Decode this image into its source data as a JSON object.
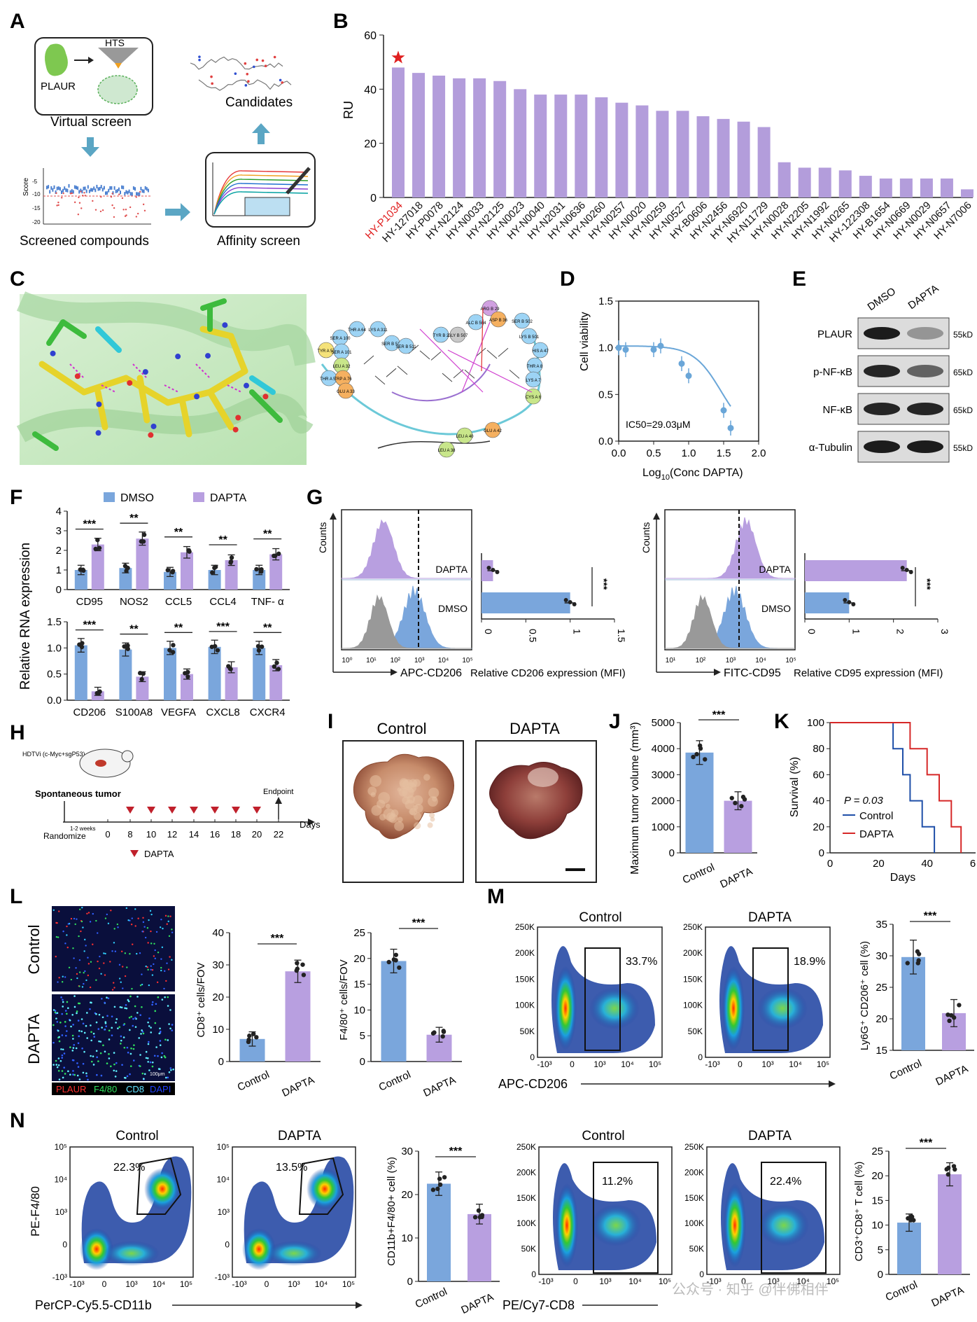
{
  "panels": {
    "A": {
      "letter": "A",
      "plaur": "PLAUR",
      "hts": "HTS",
      "virtual_screen": "Virtual screen",
      "candidates": "Candidates",
      "screened": "Screened compounds",
      "affinity": "Affinity screen",
      "score_label": "Score",
      "score_ticks": [
        "-5",
        "-10",
        "-15",
        "-20"
      ]
    },
    "B": {
      "letter": "B"
    },
    "C": {
      "letter": "C",
      "residue_labels": [
        "TYR A 57",
        "SER A 100",
        "THR A 64",
        "LYS A 311",
        "SER A 101",
        "LEU A 32",
        "THR A 59",
        "TRP A 76",
        "GLU A 33",
        "SER B 512",
        "SER B 511",
        "TYR B 2",
        "GLY B 507",
        "ALC B 504",
        "ARG B 29",
        "ASP B 36",
        "SER B 502",
        "LYS B 501",
        "HIS A 47",
        "THR A 8",
        "LYS A 7",
        "CYS A 6",
        "GLU A 42",
        "LEU A 40",
        "LEU A 38"
      ]
    },
    "D": {
      "letter": "D",
      "ylabel": "Cell viability",
      "xlabel_main": "Log",
      "xlabel_sub": "10",
      "xlabel_rest": "(Conc DAPTA)",
      "ic50": "IC50=29.03μM",
      "xticks": [
        "0.0",
        "0.5",
        "1.0",
        "1.5",
        "2.0"
      ],
      "yticks": [
        "0.0",
        "0.5",
        "1.0",
        "1.5"
      ]
    },
    "E": {
      "letter": "E",
      "cols": [
        "DMSO",
        "DAPTA"
      ],
      "rows": [
        {
          "name": "PLAUR",
          "kd": "55kD"
        },
        {
          "name": "p-NF-κB",
          "kd": "65kD"
        },
        {
          "name": "NF-κB",
          "kd": "65kD"
        },
        {
          "name": "α-Tubulin",
          "kd": "55kD"
        }
      ]
    },
    "F": {
      "letter": "F",
      "ylabel": "Relative RNA expression",
      "legend": [
        "DMSO",
        "DAPTA"
      ]
    },
    "G": {
      "letter": "G",
      "counts": "Counts",
      "left_x": "APC-CD206",
      "right_x": "FITC-CD95",
      "left_bar_x": "Relative CD206 expression (MFI)",
      "right_bar_x": "Relative CD95 expression (MFI)",
      "rows": [
        "DAPTA",
        "DMSO"
      ],
      "hist_ticks": [
        "10⁰",
        "10¹",
        "10²",
        "10³",
        "10⁴",
        "10⁵"
      ],
      "hist_ticks_right": [
        "10¹",
        "10²",
        "10³",
        "10⁴",
        "10⁵"
      ]
    },
    "H": {
      "letter": "H",
      "hdtv": "HDTVi (c-Myc+sgP53)",
      "spont": "Spontaneous tumor",
      "endpoint": "Endpoint",
      "randomize": "Randomize",
      "weeks": "1-2 weeks",
      "days": "Days",
      "ticks": [
        "0",
        "8",
        "10",
        "12",
        "14",
        "16",
        "18",
        "20",
        "22"
      ],
      "legend": "DAPTA"
    },
    "I": {
      "letter": "I",
      "labels": [
        "Control",
        "DAPTA"
      ]
    },
    "J": {
      "letter": "J",
      "ylabel": "Maximum tumor volume (mm³)",
      "yticks": [
        "0",
        "1000",
        "2000",
        "3000",
        "4000",
        "5000"
      ],
      "xlabels": [
        "Control",
        "DAPTA"
      ],
      "sig": "***"
    },
    "K": {
      "letter": "K",
      "ylabel": "Survival (%)",
      "xlabel": "Days",
      "p": "P = 0.03",
      "legend": [
        "Control",
        "DAPTA"
      ],
      "yticks": [
        "0",
        "20",
        "40",
        "60",
        "80",
        "100"
      ],
      "xticks": [
        "0",
        "20",
        "40",
        "6"
      ]
    },
    "L": {
      "letter": "L",
      "rows": [
        "Control",
        "DAPTA"
      ],
      "legend": [
        "PLAUR",
        "F4/80",
        "CD8",
        "DAPI"
      ],
      "scalebar": "100μm",
      "cd8_ylabel": "CD8⁺ cells/FOV",
      "f480_ylabel": "F4/80⁺ cells/FOV",
      "xlabels": [
        "Control",
        "DAPTA"
      ],
      "sig": "***"
    },
    "M": {
      "letter": "M",
      "titles": [
        "Control",
        "DAPTA"
      ],
      "pcts": [
        "33.7%",
        "18.9%"
      ],
      "xlabel": "APC-CD206",
      "bar_ylabel": "Ly6G⁺ CD206⁺ cell (%)",
      "yticks_k": [
        "0",
        "50K",
        "100K",
        "150K",
        "200K",
        "250K"
      ],
      "xticks": [
        "-10³",
        "0",
        "10³",
        "10⁴",
        "10⁵"
      ],
      "xlabels": [
        "Control",
        "DAPTA"
      ],
      "sig": "***"
    },
    "N": {
      "letter": "N",
      "titles_left": [
        "Control",
        "DAPTA"
      ],
      "pcts_left": [
        "22.3%",
        "13.5%"
      ],
      "ylabel_left": "PE-F4/80",
      "xlabel_left": "PerCP-Cy5.5-CD11b",
      "bar1_ylabel": "CD11b+F4/80+ cell (%)",
      "titles_right": [
        "Control",
        "DAPTA"
      ],
      "pcts_right": [
        "11.2%",
        "22.4%"
      ],
      "xlabel_right": "PE/Cy7-CD8",
      "bar2_ylabel": "CD3⁺CD8⁺ T cell (%)",
      "log_ticks": [
        "-10³",
        "0",
        "10³",
        "10⁴",
        "10⁵"
      ],
      "xlabels": [
        "Control",
        "DAPTA"
      ],
      "sig": "***"
    }
  },
  "watermark": "公众号 · 知乎 @伴佛相伴",
  "colors": {
    "dmso": "#7aa6dc",
    "dapta": "#b89fe0",
    "bar_purple": "#b39ddb",
    "control_line": "#1f4fa8",
    "dapta_line": "#d62828",
    "star": "#e02020",
    "highlight": "#e02020"
  },
  "chart_data": [
    {
      "id": "B",
      "type": "bar",
      "ylabel": "RU",
      "ylim": [
        0,
        60
      ],
      "yticks": [
        0,
        20,
        40,
        60
      ],
      "categories": [
        "HY-P1034",
        "HY-127018",
        "HY-P0078",
        "HY-N2124",
        "HY-N0033",
        "HY-N2125",
        "HY-N0023",
        "HY-N0040",
        "HY-N2031",
        "HY-N0636",
        "HY-N0260",
        "HY-N0257",
        "HY-N0020",
        "HY-N0259",
        "HY-N0527",
        "HY-B0606",
        "HY-N2456",
        "HY-N6920",
        "HY-N11729",
        "HY-N0028",
        "HY-N2205",
        "HY-N1992",
        "HY-N0265",
        "HY-122308",
        "HY-B1654",
        "HY-N0669",
        "HY-N0029",
        "HY-N0657",
        "HY-N7006"
      ],
      "values": [
        48,
        46,
        45,
        44,
        44,
        43,
        40,
        38,
        38,
        38,
        37,
        35,
        34,
        32,
        32,
        30,
        29,
        28,
        26,
        13,
        11,
        11,
        10,
        8,
        7,
        7,
        7,
        7,
        3
      ]
    },
    {
      "id": "D",
      "type": "line",
      "ylabel": "Cell viability",
      "xlim": [
        0,
        2
      ],
      "ylim": [
        0,
        1.5
      ],
      "x": [
        0.0,
        0.1,
        0.5,
        0.6,
        0.9,
        1.0,
        1.5,
        1.6
      ],
      "y": [
        1.0,
        0.98,
        0.98,
        1.02,
        0.83,
        0.7,
        0.33,
        0.14
      ]
    },
    {
      "id": "F_top",
      "type": "bar",
      "categories": [
        "CD95",
        "NOS2",
        "CCL5",
        "CCL4",
        "TNF- α"
      ],
      "ylim": [
        0,
        4
      ],
      "yticks": [
        0,
        1,
        2,
        3,
        4
      ],
      "series": [
        {
          "name": "DMSO",
          "values": [
            1.0,
            1.1,
            0.9,
            1.0,
            1.0
          ]
        },
        {
          "name": "DAPTA",
          "values": [
            2.3,
            2.6,
            1.9,
            1.5,
            1.8
          ]
        }
      ],
      "significance": [
        "***",
        "**",
        "**",
        "**",
        "**"
      ]
    },
    {
      "id": "F_bottom",
      "type": "bar",
      "categories": [
        "CD206",
        "S100A8",
        "VEGFA",
        "CXCL8",
        "CXCR4"
      ],
      "ylim": [
        0,
        1.5
      ],
      "yticks": [
        0.0,
        0.5,
        1.0,
        1.5
      ],
      "series": [
        {
          "name": "DMSO",
          "values": [
            1.05,
            0.97,
            1.0,
            1.02,
            1.0
          ]
        },
        {
          "name": "DAPTA",
          "values": [
            0.17,
            0.45,
            0.5,
            0.63,
            0.67
          ]
        }
      ],
      "significance": [
        "***",
        "**",
        "**",
        "***",
        "**"
      ]
    },
    {
      "id": "G_CD206",
      "type": "bar",
      "orientation": "horizontal",
      "categories": [
        "DAPTA",
        "DMSO"
      ],
      "values": [
        0.13,
        1.0
      ],
      "xlim": [
        0,
        1.5
      ],
      "xticks": [
        0,
        0.5,
        1.0,
        1.5
      ],
      "significance": "***"
    },
    {
      "id": "G_CD95",
      "type": "bar",
      "orientation": "horizontal",
      "categories": [
        "DAPTA",
        "DMSO"
      ],
      "values": [
        2.3,
        1.0
      ],
      "xlim": [
        0,
        3
      ],
      "xticks": [
        0,
        1,
        2,
        3
      ],
      "significance": "***"
    },
    {
      "id": "J",
      "type": "bar",
      "categories": [
        "Control",
        "DAPTA"
      ],
      "values": [
        3850,
        2000
      ],
      "ylim": [
        0,
        5000
      ]
    },
    {
      "id": "K",
      "type": "line",
      "xlabel": "Days",
      "ylabel": "Survival (%)",
      "ylim": [
        0,
        100
      ],
      "series": [
        {
          "name": "Control",
          "x": [
            0,
            26,
            26,
            30,
            30,
            33,
            33,
            38,
            38,
            43,
            43
          ],
          "y": [
            100,
            100,
            80,
            80,
            60,
            60,
            40,
            40,
            20,
            20,
            0
          ]
        },
        {
          "name": "DAPTA",
          "x": [
            0,
            33,
            33,
            40,
            40,
            45,
            45,
            50,
            50,
            54,
            54
          ],
          "y": [
            100,
            100,
            80,
            80,
            60,
            60,
            40,
            40,
            20,
            20,
            0
          ]
        }
      ]
    },
    {
      "id": "L_CD8",
      "type": "bar",
      "categories": [
        "Control",
        "DAPTA"
      ],
      "values": [
        7,
        28
      ],
      "ylim": [
        0,
        40
      ],
      "yticks": [
        0,
        10,
        20,
        30,
        40
      ]
    },
    {
      "id": "L_F480",
      "type": "bar",
      "categories": [
        "Control",
        "DAPTA"
      ],
      "values": [
        19.5,
        5.2
      ],
      "ylim": [
        0,
        25
      ],
      "yticks": [
        0,
        5,
        10,
        15,
        20,
        25
      ]
    },
    {
      "id": "M",
      "type": "bar",
      "categories": [
        "Control",
        "DAPTA"
      ],
      "values": [
        29.8,
        20.9
      ],
      "ylim": [
        15,
        35
      ],
      "yticks": [
        15,
        20,
        25,
        30,
        35
      ]
    },
    {
      "id": "N_CD11b",
      "type": "bar",
      "categories": [
        "Control",
        "DAPTA"
      ],
      "values": [
        22.5,
        15.5
      ],
      "ylim": [
        0,
        30
      ],
      "yticks": [
        0,
        10,
        20,
        30
      ]
    },
    {
      "id": "N_CD8",
      "type": "bar",
      "categories": [
        "Control",
        "DAPTA"
      ],
      "values": [
        10.5,
        20.3
      ],
      "ylim": [
        0,
        25
      ],
      "yticks": [
        0,
        5,
        10,
        15,
        20,
        25
      ]
    }
  ]
}
